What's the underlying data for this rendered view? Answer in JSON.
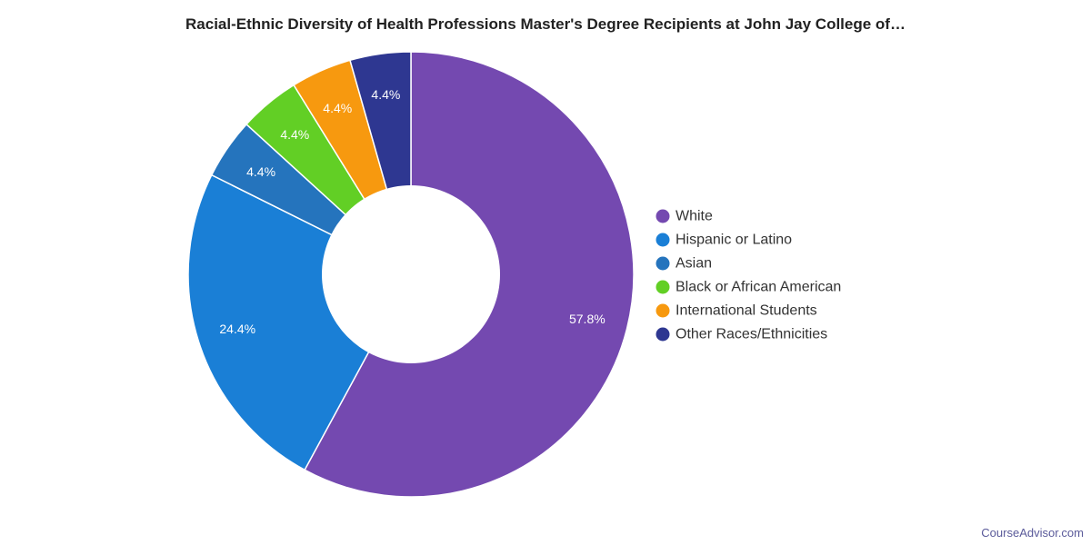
{
  "chart_data": {
    "type": "pie",
    "donut": true,
    "title": "Racial-Ethnic Diversity of Health Professions Master's Degree Recipients at John Jay College of…",
    "legend_position": "right",
    "slices": [
      {
        "label": "White",
        "value": 57.8,
        "display": "57.8%",
        "color": "#7449b0"
      },
      {
        "label": "Hispanic or Latino",
        "value": 24.4,
        "display": "24.4%",
        "color": "#1a7fd6"
      },
      {
        "label": "Asian",
        "value": 4.4,
        "display": "4.4%",
        "color": "#2574bd"
      },
      {
        "label": "Black or African American",
        "value": 4.4,
        "display": "4.4%",
        "color": "#62cf25"
      },
      {
        "label": "International Students",
        "value": 4.4,
        "display": "4.4%",
        "color": "#f7990f"
      },
      {
        "label": "Other Races/Ethnicities",
        "value": 4.4,
        "display": "4.4%",
        "color": "#2e3791"
      }
    ]
  },
  "watermark": "CourseAdvisor.com"
}
